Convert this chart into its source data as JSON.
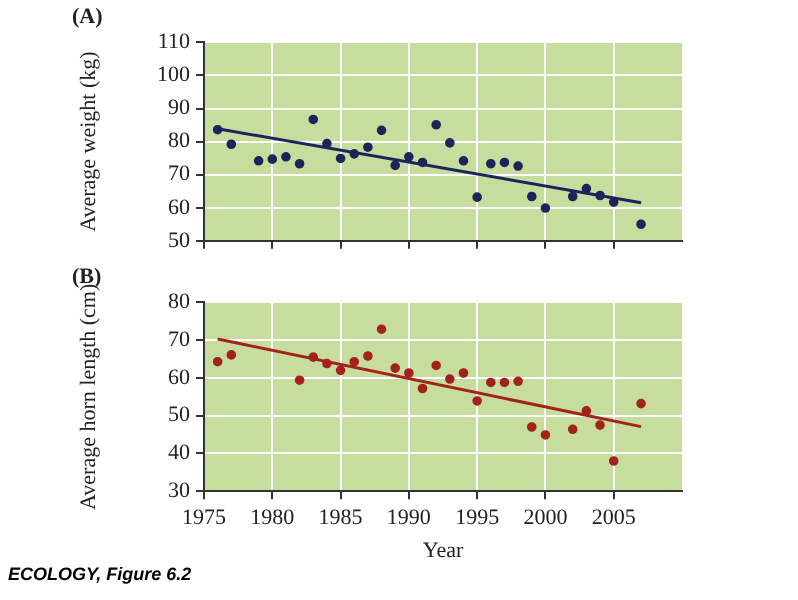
{
  "chart_data": [
    {
      "type": "scatter",
      "title": "(A)",
      "ylabel": "Average weight (kg)",
      "xlim": [
        1975,
        2010
      ],
      "xticks": [
        1975,
        1980,
        1985,
        1990,
        1995,
        2000,
        2005
      ],
      "ylim": [
        50,
        110
      ],
      "yticks": [
        50,
        60,
        70,
        80,
        90,
        100,
        110
      ],
      "tick_labels": "y",
      "grid": true,
      "legend": false,
      "marker": "circle",
      "series": [
        {
          "color": "#1c2459",
          "x": [
            1976,
            1977,
            1979,
            1980,
            1981,
            1982,
            1983,
            1984,
            1985,
            1986,
            1987,
            1988,
            1989,
            1990,
            1991,
            1992,
            1993,
            1994,
            1995,
            1996,
            1997,
            1998,
            1999,
            2000,
            2002,
            2003,
            2004,
            2005,
            2007
          ],
          "values": [
            83.6,
            79.2,
            74.2,
            74.7,
            75.4,
            73.3,
            86.7,
            79.4,
            74.9,
            76.3,
            78.3,
            83.4,
            72.8,
            75.4,
            73.7,
            85.1,
            79.6,
            74.2,
            63.2,
            73.3,
            73.7,
            72.6,
            63.4,
            59.9,
            63.4,
            65.8,
            63.7,
            61.7,
            55.0
          ]
        },
        {
          "type": "line",
          "color": "#1c2459",
          "marker": "none",
          "x": [
            1976,
            2007
          ],
          "values": [
            83.9,
            61.5
          ]
        }
      ]
    },
    {
      "type": "scatter",
      "title": "(B)",
      "xlabel": "Year",
      "ylabel": "Average horn length (cm)",
      "xlim": [
        1975,
        2010
      ],
      "xticks": [
        1975,
        1980,
        1985,
        1990,
        1995,
        2000,
        2005
      ],
      "ylim": [
        30,
        80
      ],
      "yticks": [
        30,
        40,
        50,
        60,
        70,
        80
      ],
      "grid": true,
      "legend": false,
      "marker": "circle",
      "annotations": [
        "ECOLOGY, Figure 6.2"
      ],
      "series": [
        {
          "color": "#a3221c",
          "x": [
            1976,
            1977,
            1982,
            1983,
            1984,
            1985,
            1986,
            1987,
            1988,
            1989,
            1990,
            1991,
            1992,
            1993,
            1994,
            1995,
            1996,
            1997,
            1998,
            1999,
            2000,
            2002,
            2003,
            2004,
            2005,
            2007
          ],
          "values": [
            64.3,
            66.1,
            59.4,
            65.5,
            63.8,
            62.0,
            64.3,
            65.8,
            72.9,
            62.6,
            61.3,
            57.2,
            63.3,
            59.7,
            61.3,
            53.9,
            58.8,
            58.8,
            59.1,
            47.0,
            44.9,
            46.4,
            51.3,
            47.5,
            38.0,
            53.2
          ]
        },
        {
          "type": "line",
          "color": "#a3221c",
          "marker": "none",
          "x": [
            1976,
            2007
          ],
          "values": [
            70.3,
            47.1
          ]
        }
      ]
    }
  ]
}
